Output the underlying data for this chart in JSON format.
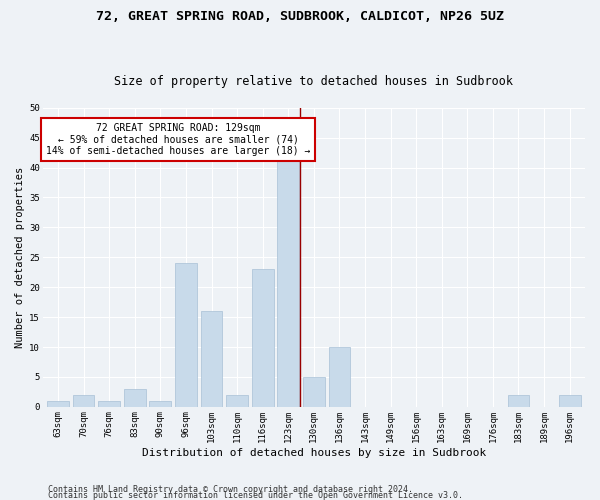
{
  "title1": "72, GREAT SPRING ROAD, SUDBROOK, CALDICOT, NP26 5UZ",
  "title2": "Size of property relative to detached houses in Sudbrook",
  "xlabel": "Distribution of detached houses by size in Sudbrook",
  "ylabel": "Number of detached properties",
  "categories": [
    "63sqm",
    "70sqm",
    "76sqm",
    "83sqm",
    "90sqm",
    "96sqm",
    "103sqm",
    "110sqm",
    "116sqm",
    "123sqm",
    "130sqm",
    "136sqm",
    "143sqm",
    "149sqm",
    "156sqm",
    "163sqm",
    "169sqm",
    "176sqm",
    "183sqm",
    "189sqm",
    "196sqm"
  ],
  "values": [
    1,
    2,
    1,
    3,
    1,
    24,
    16,
    2,
    23,
    42,
    5,
    10,
    0,
    0,
    0,
    0,
    0,
    0,
    2,
    0,
    2
  ],
  "bar_color": "#c8daea",
  "bar_edge_color": "#a8c0d6",
  "vline_color": "#990000",
  "vline_x_pos": 9.45,
  "annotation_text": "72 GREAT SPRING ROAD: 129sqm\n← 59% of detached houses are smaller (74)\n14% of semi-detached houses are larger (18) →",
  "annotation_box_facecolor": "#ffffff",
  "annotation_box_edgecolor": "#cc0000",
  "ylim": [
    0,
    50
  ],
  "yticks": [
    0,
    5,
    10,
    15,
    20,
    25,
    30,
    35,
    40,
    45,
    50
  ],
  "footer1": "Contains HM Land Registry data © Crown copyright and database right 2024.",
  "footer2": "Contains public sector information licensed under the Open Government Licence v3.0.",
  "bg_color": "#eef2f6",
  "grid_color": "#ffffff",
  "title1_fontsize": 9.5,
  "title2_fontsize": 8.5,
  "xlabel_fontsize": 8,
  "ylabel_fontsize": 7.5,
  "tick_fontsize": 6.5,
  "annotation_fontsize": 7,
  "footer_fontsize": 6
}
